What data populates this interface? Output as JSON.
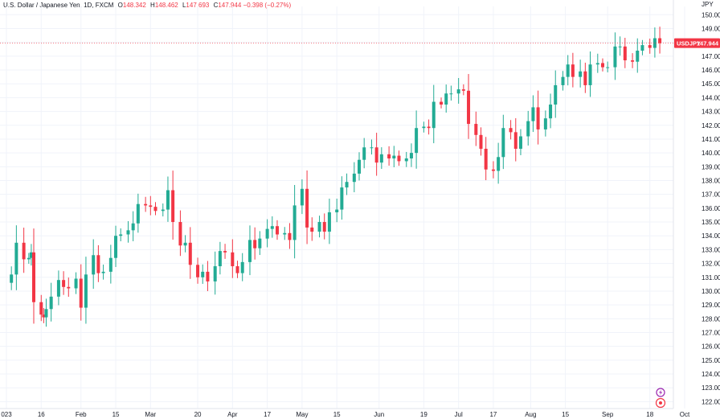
{
  "legend": {
    "title": "U.S. Dollar / Japanese Yen, 1D, FXCM",
    "open_label": "O",
    "open": "148.342",
    "high_label": "H",
    "high": "148.462",
    "low_label": "L",
    "low": "147.693",
    "close_label": "C",
    "close": "147.944",
    "change": "−0.398 (−0.27%)"
  },
  "price_badge": {
    "symbol": "USDJPY",
    "value": "147.944",
    "color": "#f23645"
  },
  "colors": {
    "up": "#22ab94",
    "down": "#f23645",
    "grid": "#f0f3fa",
    "text": "#131722",
    "icon_purple": "#9c27b0",
    "icon_red": "#f23645"
  },
  "icons": [
    "lightning-icon",
    "target-icon"
  ],
  "chart_data": {
    "type": "candlestick",
    "currency": "JPY",
    "ylim": [
      121.5,
      150.6
    ],
    "y_ticks": [
      122,
      123,
      124,
      125,
      126,
      127,
      128,
      129,
      130,
      131,
      132,
      133,
      134,
      135,
      136,
      137,
      138,
      139,
      140,
      141,
      142,
      143,
      144,
      145,
      146,
      147,
      148,
      149,
      150
    ],
    "x_ticks": [
      {
        "date": "2023-01-02",
        "label": "023"
      },
      {
        "date": "2023-01-16",
        "label": "16"
      },
      {
        "date": "2023-02-01",
        "label": "Feb"
      },
      {
        "date": "2023-02-15",
        "label": "15"
      },
      {
        "date": "2023-03-01",
        "label": "Mar"
      },
      {
        "date": "2023-03-20",
        "label": "20"
      },
      {
        "date": "2023-04-03",
        "label": "Apr"
      },
      {
        "date": "2023-04-17",
        "label": "17"
      },
      {
        "date": "2023-05-01",
        "label": "May"
      },
      {
        "date": "2023-05-15",
        "label": "15"
      },
      {
        "date": "2023-06-01",
        "label": "Jun"
      },
      {
        "date": "2023-06-19",
        "label": "19"
      },
      {
        "date": "2023-07-03",
        "label": "Jul"
      },
      {
        "date": "2023-07-17",
        "label": "17"
      },
      {
        "date": "2023-08-01",
        "label": "Aug"
      },
      {
        "date": "2023-08-15",
        "label": "15"
      },
      {
        "date": "2023-09-01",
        "label": "Sep"
      },
      {
        "date": "2023-09-18",
        "label": "18"
      },
      {
        "date": "2023-10-02",
        "label": "Oct"
      }
    ],
    "closes": [
      {
        "date": "2023-01-02",
        "close": 130.6
      },
      {
        "date": "2023-01-04",
        "close": 131.2
      },
      {
        "date": "2023-01-06",
        "close": 133.5
      },
      {
        "date": "2023-01-09",
        "close": 132.3
      },
      {
        "date": "2023-01-11",
        "close": 132.4
      },
      {
        "date": "2023-01-12",
        "close": 132.8
      },
      {
        "date": "2023-01-13",
        "close": 129.2
      },
      {
        "date": "2023-01-16",
        "close": 128.3
      },
      {
        "date": "2023-01-17",
        "close": 128.1
      },
      {
        "date": "2023-01-18",
        "close": 128.7
      },
      {
        "date": "2023-01-20",
        "close": 129.6
      },
      {
        "date": "2023-01-23",
        "close": 130.8
      },
      {
        "date": "2023-01-25",
        "close": 130.3
      },
      {
        "date": "2023-01-27",
        "close": 130.2
      },
      {
        "date": "2023-01-30",
        "close": 130.9
      },
      {
        "date": "2023-02-01",
        "close": 128.8
      },
      {
        "date": "2023-02-03",
        "close": 131.2
      },
      {
        "date": "2023-02-06",
        "close": 132.6
      },
      {
        "date": "2023-02-08",
        "close": 131.3
      },
      {
        "date": "2023-02-10",
        "close": 131.4
      },
      {
        "date": "2023-02-13",
        "close": 132.4
      },
      {
        "date": "2023-02-15",
        "close": 134.0
      },
      {
        "date": "2023-02-17",
        "close": 134.1
      },
      {
        "date": "2023-02-20",
        "close": 134.4
      },
      {
        "date": "2023-02-22",
        "close": 134.9
      },
      {
        "date": "2023-02-24",
        "close": 136.3
      },
      {
        "date": "2023-02-27",
        "close": 136.2
      },
      {
        "date": "2023-03-01",
        "close": 136.1
      },
      {
        "date": "2023-03-03",
        "close": 135.8
      },
      {
        "date": "2023-03-06",
        "close": 135.9
      },
      {
        "date": "2023-03-08",
        "close": 137.3
      },
      {
        "date": "2023-03-10",
        "close": 135.0
      },
      {
        "date": "2023-03-13",
        "close": 133.3
      },
      {
        "date": "2023-03-15",
        "close": 133.5
      },
      {
        "date": "2023-03-17",
        "close": 131.9
      },
      {
        "date": "2023-03-20",
        "close": 131.0
      },
      {
        "date": "2023-03-22",
        "close": 131.4
      },
      {
        "date": "2023-03-24",
        "close": 130.7
      },
      {
        "date": "2023-03-27",
        "close": 131.8
      },
      {
        "date": "2023-03-29",
        "close": 132.9
      },
      {
        "date": "2023-03-31",
        "close": 132.8
      },
      {
        "date": "2023-04-03",
        "close": 131.8
      },
      {
        "date": "2023-04-05",
        "close": 131.3
      },
      {
        "date": "2023-04-07",
        "close": 132.1
      },
      {
        "date": "2023-04-10",
        "close": 133.7
      },
      {
        "date": "2023-04-12",
        "close": 133.1
      },
      {
        "date": "2023-04-14",
        "close": 133.8
      },
      {
        "date": "2023-04-17",
        "close": 134.5
      },
      {
        "date": "2023-04-19",
        "close": 134.7
      },
      {
        "date": "2023-04-21",
        "close": 134.1
      },
      {
        "date": "2023-04-24",
        "close": 134.2
      },
      {
        "date": "2023-04-26",
        "close": 133.7
      },
      {
        "date": "2023-04-28",
        "close": 136.2
      },
      {
        "date": "2023-05-01",
        "close": 137.4
      },
      {
        "date": "2023-05-03",
        "close": 134.6
      },
      {
        "date": "2023-05-05",
        "close": 134.3
      },
      {
        "date": "2023-05-08",
        "close": 135.0
      },
      {
        "date": "2023-05-10",
        "close": 134.3
      },
      {
        "date": "2023-05-12",
        "close": 135.7
      },
      {
        "date": "2023-05-15",
        "close": 135.9
      },
      {
        "date": "2023-05-17",
        "close": 137.5
      },
      {
        "date": "2023-05-19",
        "close": 137.9
      },
      {
        "date": "2023-05-22",
        "close": 138.5
      },
      {
        "date": "2023-05-24",
        "close": 139.5
      },
      {
        "date": "2023-05-26",
        "close": 140.4
      },
      {
        "date": "2023-05-29",
        "close": 140.4
      },
      {
        "date": "2023-05-31",
        "close": 139.3
      },
      {
        "date": "2023-06-02",
        "close": 139.9
      },
      {
        "date": "2023-06-05",
        "close": 139.6
      },
      {
        "date": "2023-06-07",
        "close": 139.8
      },
      {
        "date": "2023-06-09",
        "close": 139.4
      },
      {
        "date": "2023-06-12",
        "close": 139.6
      },
      {
        "date": "2023-06-14",
        "close": 140.0
      },
      {
        "date": "2023-06-16",
        "close": 141.8
      },
      {
        "date": "2023-06-19",
        "close": 141.9
      },
      {
        "date": "2023-06-21",
        "close": 141.8
      },
      {
        "date": "2023-06-23",
        "close": 143.7
      },
      {
        "date": "2023-06-26",
        "close": 143.5
      },
      {
        "date": "2023-06-28",
        "close": 144.3
      },
      {
        "date": "2023-06-30",
        "close": 144.3
      },
      {
        "date": "2023-07-03",
        "close": 144.6
      },
      {
        "date": "2023-07-05",
        "close": 144.5
      },
      {
        "date": "2023-07-07",
        "close": 142.1
      },
      {
        "date": "2023-07-10",
        "close": 141.3
      },
      {
        "date": "2023-07-12",
        "close": 140.3
      },
      {
        "date": "2023-07-14",
        "close": 138.8
      },
      {
        "date": "2023-07-17",
        "close": 138.7
      },
      {
        "date": "2023-07-19",
        "close": 139.7
      },
      {
        "date": "2023-07-21",
        "close": 141.8
      },
      {
        "date": "2023-07-24",
        "close": 141.5
      },
      {
        "date": "2023-07-26",
        "close": 140.3
      },
      {
        "date": "2023-07-28",
        "close": 141.2
      },
      {
        "date": "2023-07-31",
        "close": 142.3
      },
      {
        "date": "2023-08-02",
        "close": 143.3
      },
      {
        "date": "2023-08-04",
        "close": 141.7
      },
      {
        "date": "2023-08-07",
        "close": 142.5
      },
      {
        "date": "2023-08-09",
        "close": 143.5
      },
      {
        "date": "2023-08-11",
        "close": 144.9
      },
      {
        "date": "2023-08-14",
        "close": 145.5
      },
      {
        "date": "2023-08-16",
        "close": 146.4
      },
      {
        "date": "2023-08-18",
        "close": 145.5
      },
      {
        "date": "2023-08-21",
        "close": 145.9
      },
      {
        "date": "2023-08-23",
        "close": 144.9
      },
      {
        "date": "2023-08-25",
        "close": 146.4
      },
      {
        "date": "2023-08-28",
        "close": 146.5
      },
      {
        "date": "2023-08-30",
        "close": 146.2
      },
      {
        "date": "2023-09-01",
        "close": 146.2
      },
      {
        "date": "2023-09-04",
        "close": 147.7
      },
      {
        "date": "2023-09-06",
        "close": 147.7
      },
      {
        "date": "2023-09-08",
        "close": 146.7
      },
      {
        "date": "2023-09-11",
        "close": 146.6
      },
      {
        "date": "2023-09-13",
        "close": 147.4
      },
      {
        "date": "2023-09-15",
        "close": 147.8
      },
      {
        "date": "2023-09-18",
        "close": 147.6
      },
      {
        "date": "2023-09-20",
        "close": 148.3
      },
      {
        "date": "2023-09-22",
        "close": 147.944
      }
    ],
    "last_price": 147.944
  }
}
